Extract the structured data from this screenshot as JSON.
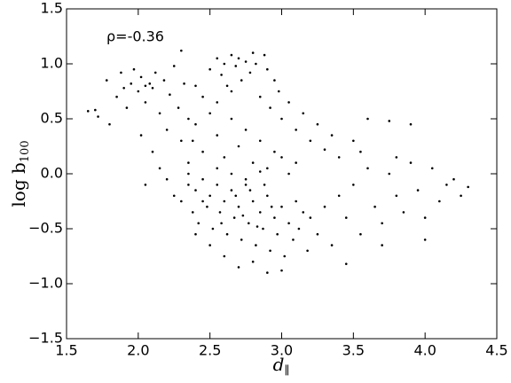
{
  "chart_data": {
    "type": "scatter",
    "annotation": "ρ=-0.36",
    "xlabel": "d",
    "xlabel_subscript": "∥",
    "ylabel": "log b",
    "ylabel_subscript": "100",
    "color": "#000000",
    "xlim": [
      1.5,
      4.5
    ],
    "ylim": [
      -1.5,
      1.5
    ],
    "xticks": [
      1.5,
      {
        "value": 2,
        "label": "2.0"
      },
      2.5,
      {
        "value": 3,
        "label": "3.0"
      },
      3.5,
      {
        "value": 4,
        "label": "4.0"
      },
      4.5
    ],
    "yticks": [
      {
        "value": -1.5,
        "label": "−1.5"
      },
      {
        "value": -1,
        "label": "−1.0"
      },
      {
        "value": -0.5,
        "label": "−0.5"
      },
      {
        "value": 0,
        "label": "0.0"
      },
      0.5,
      {
        "value": 1,
        "label": "1.0"
      },
      1.5
    ],
    "x": [
      1.65,
      1.7,
      1.72,
      1.78,
      1.8,
      1.85,
      1.88,
      1.9,
      1.92,
      1.95,
      1.97,
      2.0,
      2.02,
      2.05,
      2.05,
      2.08,
      2.1,
      2.12,
      2.15,
      2.18,
      2.2,
      2.22,
      2.25,
      2.28,
      2.3,
      2.32,
      2.35,
      2.38,
      2.02,
      2.1,
      2.15,
      2.05,
      2.2,
      2.5,
      2.55,
      2.58,
      2.6,
      2.62,
      2.65,
      2.68,
      2.7,
      2.72,
      2.75,
      2.78,
      2.8,
      2.82,
      2.85,
      2.88,
      2.9,
      2.92,
      2.95,
      2.98,
      3.0,
      3.05,
      3.1,
      3.15,
      3.2,
      3.25,
      3.3,
      3.35,
      3.4,
      2.3,
      2.35,
      2.4,
      2.45,
      2.5,
      2.55,
      2.6,
      2.65,
      2.7,
      2.75,
      2.8,
      2.85,
      2.9,
      2.95,
      3.0,
      3.05,
      3.1,
      2.45,
      2.55,
      2.65,
      2.4,
      2.25,
      2.3,
      2.35,
      2.38,
      2.4,
      2.42,
      2.45,
      2.48,
      2.5,
      2.52,
      2.55,
      2.57,
      2.6,
      2.62,
      2.65,
      2.67,
      2.7,
      2.72,
      2.75,
      2.77,
      2.8,
      2.82,
      2.85,
      2.87,
      2.9,
      2.92,
      2.95,
      2.97,
      3.0,
      3.02,
      3.05,
      3.08,
      3.1,
      3.12,
      3.15,
      3.18,
      3.2,
      3.25,
      3.3,
      3.35,
      2.6,
      2.7,
      2.8,
      2.9,
      3.0,
      2.5,
      2.4,
      2.55,
      2.65,
      2.75,
      2.85,
      2.35,
      2.45,
      2.68,
      2.78,
      2.88,
      2.58,
      2.73,
      2.83,
      2.93,
      3.4,
      3.45,
      3.5,
      3.55,
      3.6,
      3.65,
      3.7,
      3.75,
      3.8,
      3.85,
      3.9,
      3.95,
      4.0,
      4.05,
      4.1,
      4.15,
      4.2,
      4.25,
      4.3,
      3.6,
      3.75,
      3.9,
      3.5,
      3.45,
      3.55,
      4.0,
      3.7,
      3.8
    ],
    "y": [
      0.57,
      0.58,
      0.52,
      0.85,
      0.45,
      0.7,
      0.92,
      0.78,
      0.6,
      0.82,
      0.95,
      0.75,
      0.88,
      0.8,
      0.65,
      0.82,
      0.78,
      0.92,
      0.55,
      0.85,
      0.4,
      0.72,
      0.98,
      0.6,
      1.12,
      0.82,
      0.5,
      0.3,
      0.35,
      0.2,
      0.05,
      -0.1,
      -0.05,
      0.95,
      1.05,
      0.9,
      1.0,
      0.8,
      1.08,
      0.98,
      1.05,
      0.85,
      1.02,
      0.92,
      1.1,
      1.0,
      0.7,
      1.08,
      0.95,
      0.6,
      0.85,
      0.75,
      0.5,
      0.65,
      0.4,
      0.55,
      0.3,
      0.45,
      0.22,
      0.35,
      0.15,
      0.3,
      0.1,
      0.45,
      0.2,
      0.55,
      0.35,
      0.15,
      0.5,
      0.25,
      0.4,
      0.1,
      0.3,
      0.05,
      0.2,
      0.15,
      0.0,
      0.1,
      0.7,
      0.65,
      0.75,
      0.8,
      -0.2,
      -0.25,
      -0.1,
      -0.35,
      -0.15,
      -0.45,
      -0.05,
      -0.3,
      -0.2,
      -0.5,
      -0.1,
      -0.35,
      -0.25,
      -0.55,
      -0.15,
      -0.4,
      -0.3,
      -0.6,
      -0.1,
      -0.45,
      -0.25,
      -0.65,
      -0.35,
      -0.5,
      -0.2,
      -0.7,
      -0.4,
      -0.55,
      -0.3,
      -0.75,
      -0.45,
      -0.6,
      -0.25,
      -0.5,
      -0.35,
      -0.7,
      -0.4,
      -0.55,
      -0.3,
      -0.65,
      -0.75,
      -0.85,
      -0.8,
      -0.9,
      -0.88,
      -0.65,
      -0.55,
      0.05,
      0.0,
      -0.05,
      0.02,
      0.0,
      -0.25,
      -0.2,
      -0.15,
      -0.1,
      -0.45,
      -0.38,
      -0.48,
      -0.3,
      -0.2,
      -0.4,
      -0.1,
      -0.55,
      0.05,
      -0.3,
      -0.45,
      0.0,
      -0.2,
      -0.35,
      0.1,
      -0.15,
      -0.4,
      0.05,
      -0.25,
      -0.1,
      -0.05,
      -0.2,
      -0.12,
      0.5,
      0.48,
      0.45,
      0.3,
      -0.82,
      0.2,
      -0.6,
      -0.65,
      0.15
    ]
  }
}
